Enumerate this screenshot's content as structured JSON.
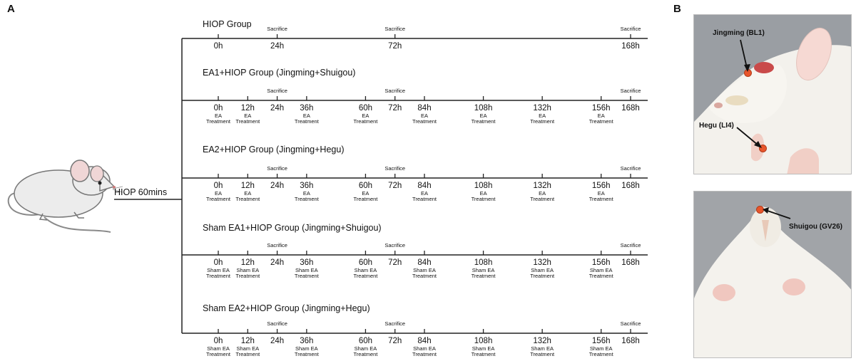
{
  "panel_a": {
    "letter": "A",
    "hiop_label": "HIOP 60mins",
    "sacrifice_label": "Sacrifice",
    "groups": [
      {
        "title": "HIOP Group",
        "ticks": [
          {
            "time": "0h",
            "sacrifice": false,
            "note": []
          },
          {
            "time": "24h",
            "sacrifice": true,
            "note": []
          },
          {
            "time": "72h",
            "sacrifice": true,
            "note": []
          },
          {
            "time": "168h",
            "sacrifice": true,
            "note": []
          }
        ]
      },
      {
        "title": "EA1+HIOP Group (Jingming+Shuigou)",
        "ticks": [
          {
            "time": "0h",
            "sacrifice": false,
            "note": [
              "EA",
              "Treatment"
            ]
          },
          {
            "time": "12h",
            "sacrifice": false,
            "note": [
              "EA",
              "Treatment"
            ]
          },
          {
            "time": "24h",
            "sacrifice": true,
            "note": []
          },
          {
            "time": "36h",
            "sacrifice": false,
            "note": [
              "EA",
              "Treatment"
            ]
          },
          {
            "time": "60h",
            "sacrifice": false,
            "note": [
              "EA",
              "Treatment"
            ]
          },
          {
            "time": "72h",
            "sacrifice": true,
            "note": []
          },
          {
            "time": "84h",
            "sacrifice": false,
            "note": [
              "EA",
              "Treatment"
            ]
          },
          {
            "time": "108h",
            "sacrifice": false,
            "note": [
              "EA",
              "Treatment"
            ]
          },
          {
            "time": "132h",
            "sacrifice": false,
            "note": [
              "EA",
              "Treatment"
            ]
          },
          {
            "time": "156h",
            "sacrifice": false,
            "note": [
              "EA",
              "Treatment"
            ]
          },
          {
            "time": "168h",
            "sacrifice": true,
            "note": []
          }
        ]
      },
      {
        "title": "EA2+HIOP Group (Jingming+Hegu)",
        "ticks": [
          {
            "time": "0h",
            "sacrifice": false,
            "note": [
              "EA",
              "Treatment"
            ]
          },
          {
            "time": "12h",
            "sacrifice": false,
            "note": [
              "EA",
              "Treatment"
            ]
          },
          {
            "time": "24h",
            "sacrifice": true,
            "note": []
          },
          {
            "time": "36h",
            "sacrifice": false,
            "note": [
              "EA",
              "Treatment"
            ]
          },
          {
            "time": "60h",
            "sacrifice": false,
            "note": [
              "EA",
              "Treatment"
            ]
          },
          {
            "time": "72h",
            "sacrifice": true,
            "note": []
          },
          {
            "time": "84h",
            "sacrifice": false,
            "note": [
              "EA",
              "Treatment"
            ]
          },
          {
            "time": "108h",
            "sacrifice": false,
            "note": [
              "EA",
              "Treatment"
            ]
          },
          {
            "time": "132h",
            "sacrifice": false,
            "note": [
              "EA",
              "Treatment"
            ]
          },
          {
            "time": "156h",
            "sacrifice": false,
            "note": [
              "EA",
              "Treatment"
            ]
          },
          {
            "time": "168h",
            "sacrifice": true,
            "note": []
          }
        ]
      },
      {
        "title": "Sham EA1+HIOP Group (Jingming+Shuigou)",
        "ticks": [
          {
            "time": "0h",
            "sacrifice": false,
            "note": [
              "Sham EA",
              "Treatment"
            ]
          },
          {
            "time": "12h",
            "sacrifice": false,
            "note": [
              "Sham EA",
              "Treatment"
            ]
          },
          {
            "time": "24h",
            "sacrifice": true,
            "note": []
          },
          {
            "time": "36h",
            "sacrifice": false,
            "note": [
              "Sham EA",
              "Treatment"
            ]
          },
          {
            "time": "60h",
            "sacrifice": false,
            "note": [
              "Sham EA",
              "Treatment"
            ]
          },
          {
            "time": "72h",
            "sacrifice": true,
            "note": []
          },
          {
            "time": "84h",
            "sacrifice": false,
            "note": [
              "Sham EA",
              "Treatment"
            ]
          },
          {
            "time": "108h",
            "sacrifice": false,
            "note": [
              "Sham EA",
              "Treatment"
            ]
          },
          {
            "time": "132h",
            "sacrifice": false,
            "note": [
              "Sham EA",
              "Treatment"
            ]
          },
          {
            "time": "156h",
            "sacrifice": false,
            "note": [
              "Sham EA",
              "Treatment"
            ]
          },
          {
            "time": "168h",
            "sacrifice": true,
            "note": []
          }
        ]
      },
      {
        "title": "Sham EA2+HIOP Group (Jingming+Hegu)",
        "ticks": [
          {
            "time": "0h",
            "sacrifice": false,
            "note": [
              "Sham EA",
              "Treatment"
            ]
          },
          {
            "time": "12h",
            "sacrifice": false,
            "note": [
              "Sham EA",
              "Treatment"
            ]
          },
          {
            "time": "24h",
            "sacrifice": true,
            "note": []
          },
          {
            "time": "36h",
            "sacrifice": false,
            "note": [
              "Sham EA",
              "Treatment"
            ]
          },
          {
            "time": "60h",
            "sacrifice": false,
            "note": [
              "Sham EA",
              "Treatment"
            ]
          },
          {
            "time": "72h",
            "sacrifice": true,
            "note": []
          },
          {
            "time": "84h",
            "sacrifice": false,
            "note": [
              "Sham EA",
              "Treatment"
            ]
          },
          {
            "time": "108h",
            "sacrifice": false,
            "note": [
              "Sham EA",
              "Treatment"
            ]
          },
          {
            "time": "132h",
            "sacrifice": false,
            "note": [
              "Sham EA",
              "Treatment"
            ]
          },
          {
            "time": "156h",
            "sacrifice": false,
            "note": [
              "Sham EA",
              "Treatment"
            ]
          },
          {
            "time": "168h",
            "sacrifice": true,
            "note": []
          }
        ]
      }
    ]
  },
  "panel_b": {
    "letter": "B",
    "acupoints": {
      "jingming": "Jingming (BL1)",
      "hegu": "Hegu (LI4)",
      "shuigou": "Shuigou (GV26)"
    },
    "marker_color": "#e8552b"
  }
}
